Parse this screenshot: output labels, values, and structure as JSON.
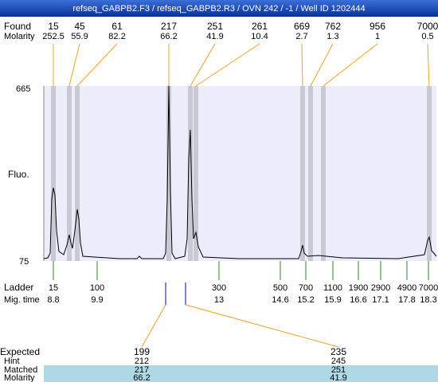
{
  "header": {
    "title": "refseq_GABPB2.F3 / refseq_GABPB2.R3 / OVN 242 / -1 / Well ID 1202444"
  },
  "found": {
    "label": "Found",
    "sublabel": "Molarity",
    "peaks": [
      {
        "size": 15,
        "molarity": 252.5
      },
      {
        "size": 45,
        "molarity": 55.9
      },
      {
        "size": 61,
        "molarity": 82.2
      },
      {
        "size": 217,
        "molarity": 66.2
      },
      {
        "size": 251,
        "molarity": 41.9
      },
      {
        "size": 261,
        "molarity": 10.4
      },
      {
        "size": 669,
        "molarity": 2.7
      },
      {
        "size": 762,
        "molarity": 1.3
      },
      {
        "size": 956,
        "molarity": 1
      },
      {
        "size": 7000,
        "molarity": 0.5
      }
    ]
  },
  "axis": {
    "label": "Fluo.",
    "top": 665,
    "bottom": 75
  },
  "ladder": {
    "label": "Ladder",
    "sublabel": "Mig. time",
    "markers": [
      {
        "size": 15,
        "time": 8.8
      },
      {
        "size": 100,
        "time": 9.9
      },
      {
        "size": 300,
        "time": 13
      },
      {
        "size": 500,
        "time": 14.6
      },
      {
        "size": 700,
        "time": 15.2
      },
      {
        "size": 1100,
        "time": 15.9
      },
      {
        "size": 1900,
        "time": 16.6
      },
      {
        "size": 2900,
        "time": 17.1
      },
      {
        "size": 4900,
        "time": 17.8
      },
      {
        "size": 7000,
        "time": 18.3
      }
    ]
  },
  "expected": {
    "labels": [
      "Expected",
      "Hint",
      "Matched",
      "Molarity"
    ],
    "columns": [
      [
        199,
        212,
        217,
        66.2
      ],
      [
        235,
        245,
        251,
        41.9
      ]
    ]
  }
}
